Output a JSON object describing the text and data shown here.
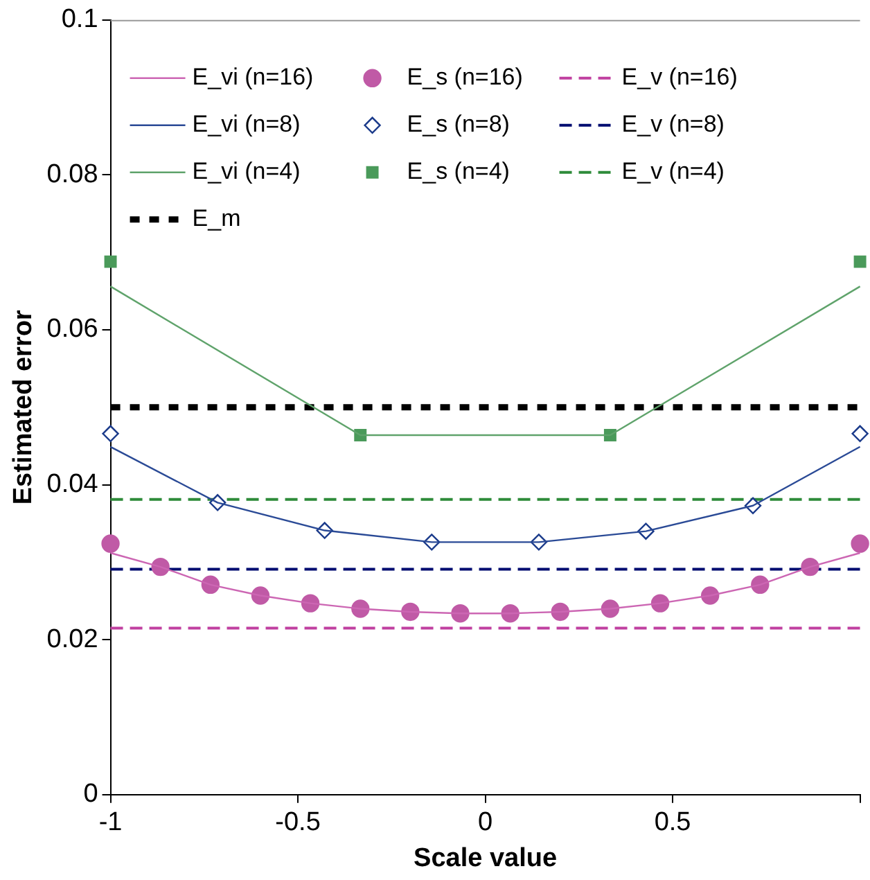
{
  "chart_data": {
    "type": "line",
    "xlabel": "Scale value",
    "ylabel": "Estimated error",
    "xlim": [
      -1,
      1
    ],
    "ylim": [
      0,
      0.1
    ],
    "xticks": [
      -1,
      -0.5,
      0,
      0.5,
      {
        "value": 1,
        "label": null
      }
    ],
    "yticks": [
      0,
      0.02,
      0.04,
      0.06,
      0.08,
      0.1
    ],
    "grid": false,
    "legend": "top",
    "series": [
      {
        "name": "E_vi (n=16)",
        "color": "#cc66b3",
        "marker": "none",
        "line_style": "solid",
        "x": [
          -1,
          -0.8667,
          -0.7333,
          -0.6,
          -0.4667,
          -0.3333,
          -0.2,
          -0.0667,
          0.0667,
          0.2,
          0.3333,
          0.4667,
          0.6,
          0.7333,
          0.8667,
          1
        ],
        "values": [
          0.0312,
          0.0294,
          0.0271,
          0.0257,
          0.0247,
          0.024,
          0.0236,
          0.0234,
          0.0234,
          0.0236,
          0.024,
          0.0247,
          0.0257,
          0.0271,
          0.0294,
          0.0312
        ]
      },
      {
        "name": "E_s (n=16)",
        "type": "scatter",
        "color": "#c05aa6",
        "marker": "circle",
        "x": [
          -1,
          -0.8667,
          -0.7333,
          -0.6,
          -0.4667,
          -0.3333,
          -0.2,
          -0.0667,
          0.0667,
          0.2,
          0.3333,
          0.4667,
          0.6,
          0.7333,
          0.8667,
          1
        ],
        "values": [
          0.0324,
          0.0294,
          0.0271,
          0.0257,
          0.0247,
          0.024,
          0.0236,
          0.0234,
          0.0234,
          0.0236,
          0.024,
          0.0247,
          0.0257,
          0.0271,
          0.0294,
          0.0324
        ]
      },
      {
        "name": "E_v (n=16)",
        "color": "#c040a0",
        "marker": "none",
        "line_style": "dashed",
        "x": [
          -1,
          1
        ],
        "values": [
          0.0215,
          0.0215
        ]
      },
      {
        "name": "E_vi (n=8)",
        "color": "#2a4a96",
        "marker": "none",
        "line_style": "solid",
        "x": [
          -1,
          -0.7143,
          -0.4286,
          -0.1429,
          0.1429,
          0.4286,
          0.7143,
          1
        ],
        "values": [
          0.0449,
          0.0377,
          0.0341,
          0.0326,
          0.0326,
          0.034,
          0.0373,
          0.0449
        ]
      },
      {
        "name": "E_s (n=8)",
        "type": "scatter",
        "color": "#1a3a8a",
        "marker": "diamond",
        "x": [
          -1,
          -0.7143,
          -0.4286,
          -0.1429,
          0.1429,
          0.4286,
          0.7143,
          1
        ],
        "values": [
          0.0466,
          0.0377,
          0.0341,
          0.0326,
          0.0326,
          0.034,
          0.0373,
          0.0466
        ]
      },
      {
        "name": "E_v (n=8)",
        "color": "#000c70",
        "marker": "none",
        "line_style": "dashed",
        "x": [
          -1,
          1
        ],
        "values": [
          0.0291,
          0.0291
        ]
      },
      {
        "name": "E_vi (n=4)",
        "color": "#5fa36b",
        "marker": "none",
        "line_style": "solid",
        "x": [
          -1,
          -0.3333,
          0.3333,
          1
        ],
        "values": [
          0.0656,
          0.0464,
          0.0464,
          0.0656
        ]
      },
      {
        "name": "E_s (n=4)",
        "type": "scatter",
        "color": "#4a9a5a",
        "marker": "square",
        "x": [
          -1,
          -0.3333,
          0.3333,
          1
        ],
        "values": [
          0.0688,
          0.0464,
          0.0464,
          0.0688
        ]
      },
      {
        "name": "E_v (n=4)",
        "color": "#2e8b3a",
        "marker": "none",
        "line_style": "dashed",
        "x": [
          -1,
          1
        ],
        "values": [
          0.0381,
          0.0381
        ]
      },
      {
        "name": "E_m",
        "color": "#000000",
        "marker": "none",
        "line_style": "dotted",
        "x": [
          -1,
          1
        ],
        "values": [
          0.05,
          0.05
        ]
      }
    ]
  }
}
